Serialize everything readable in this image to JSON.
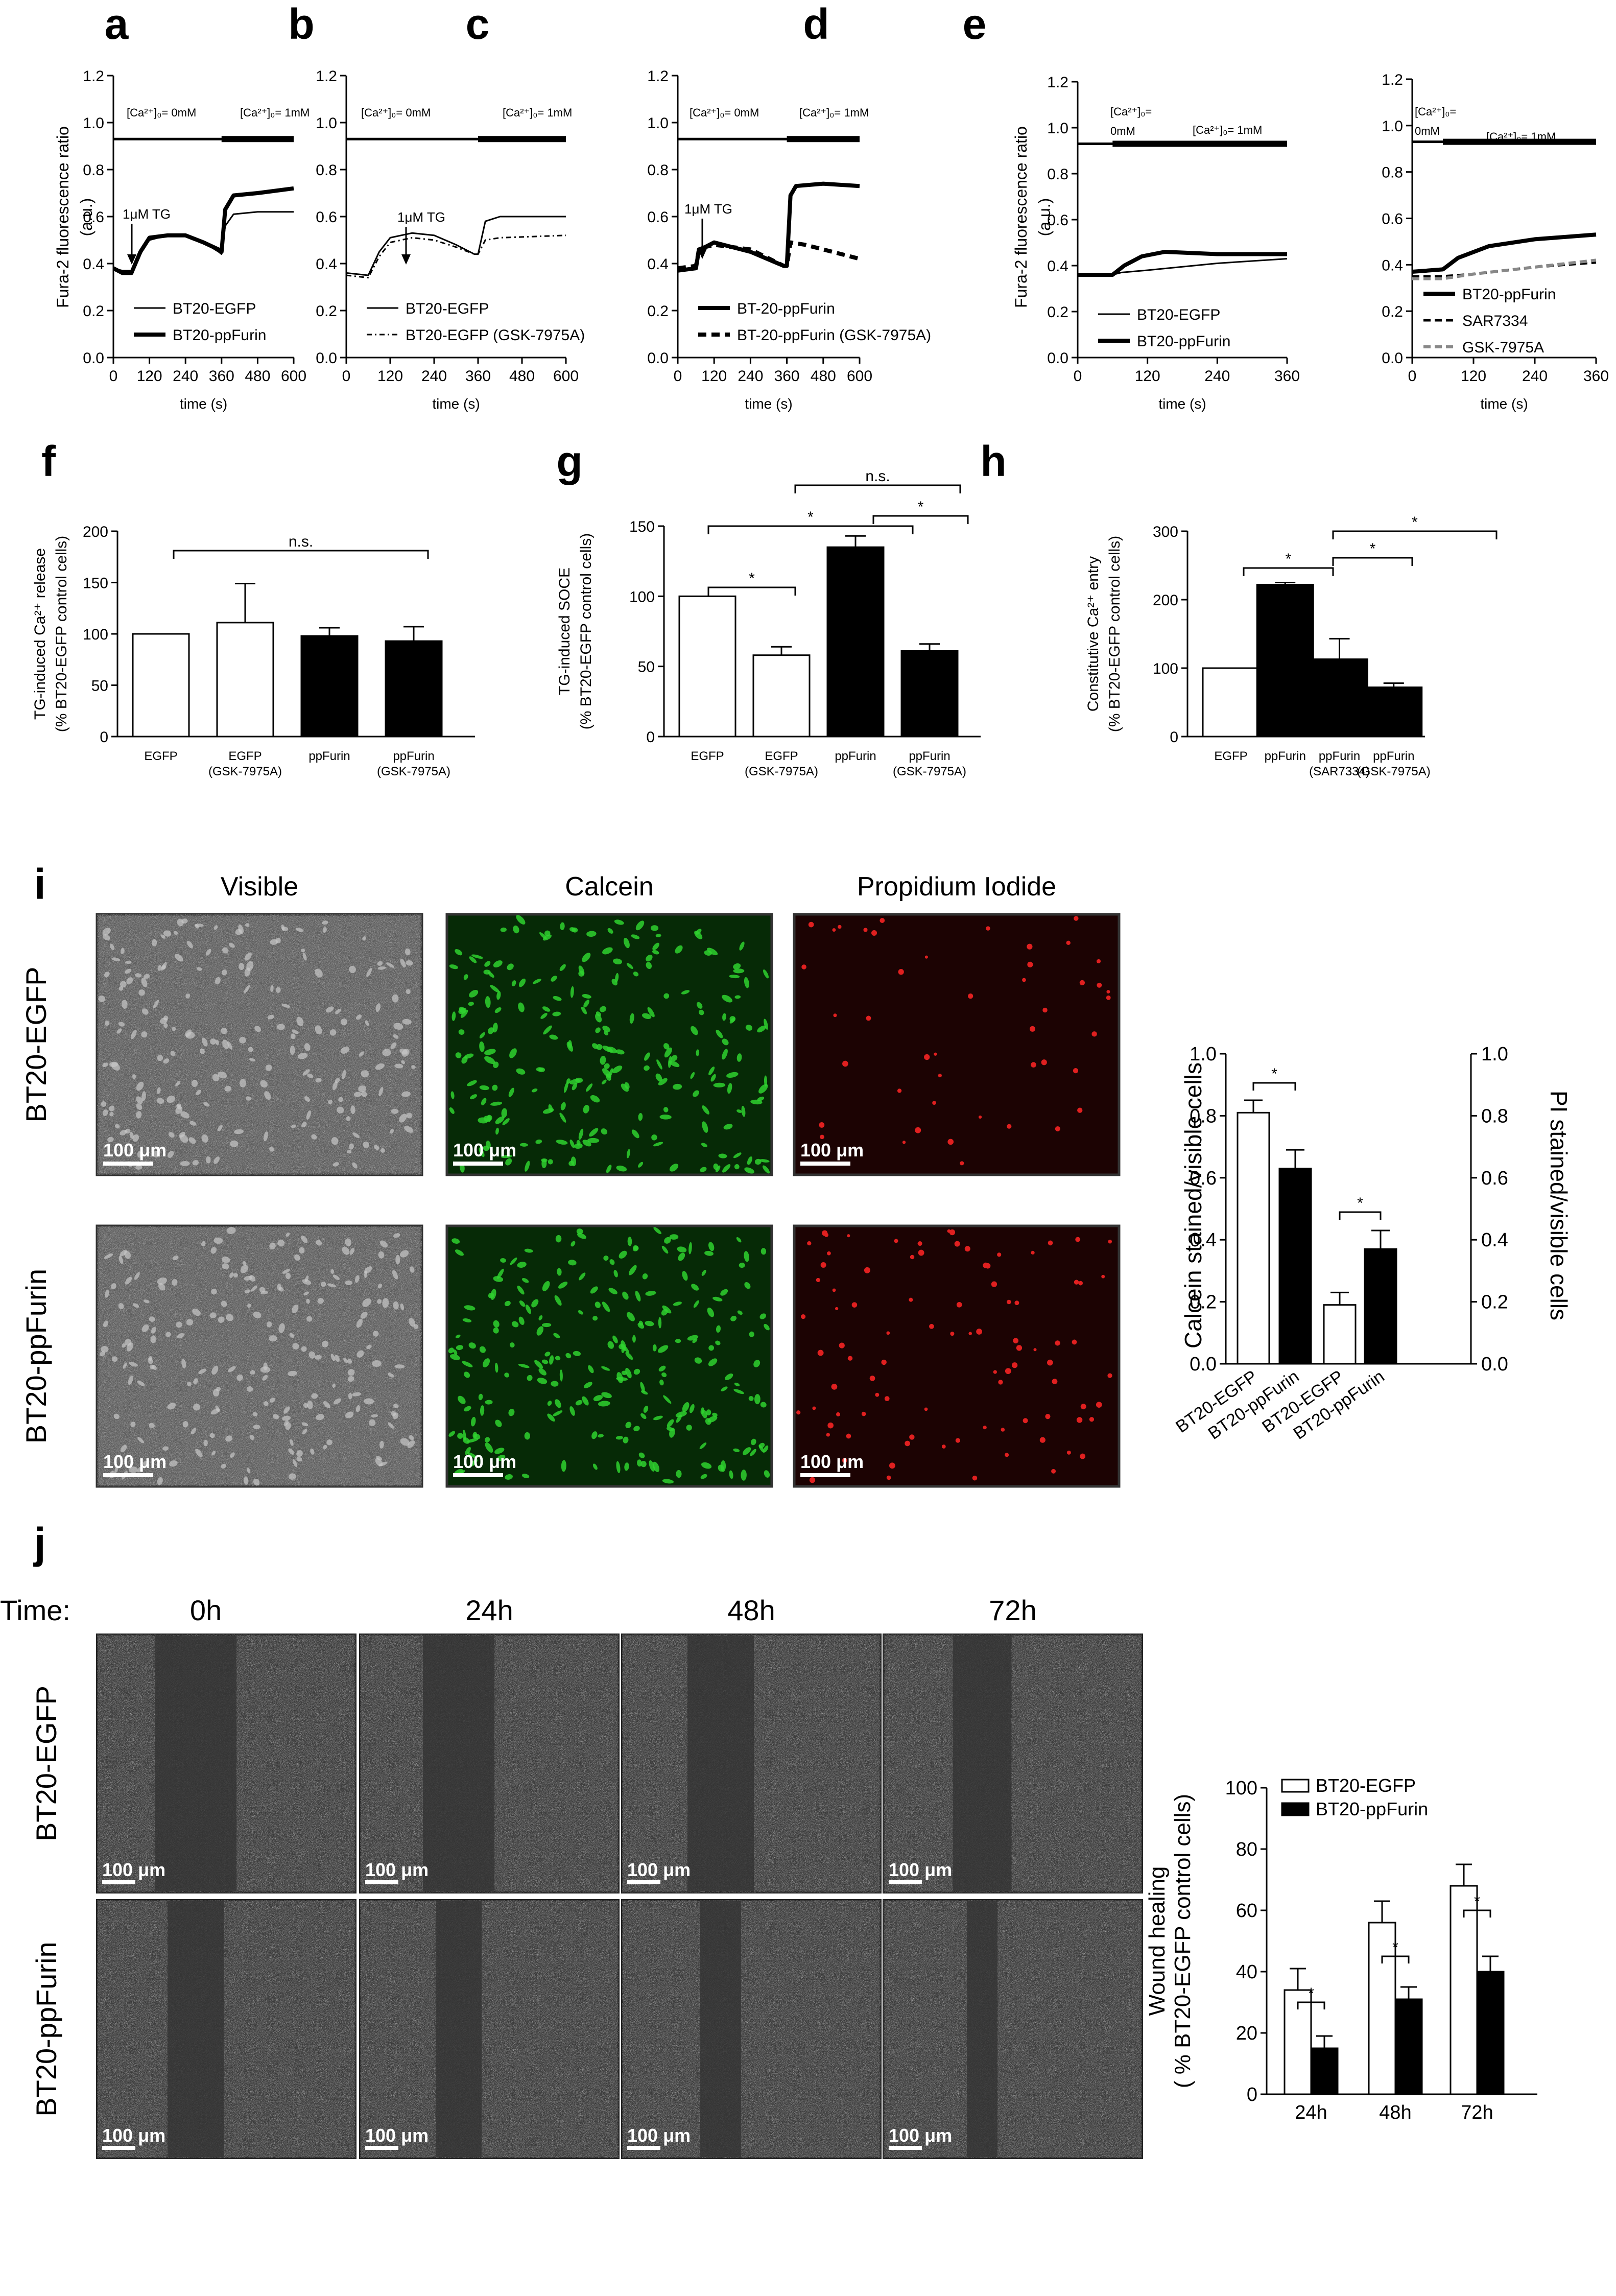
{
  "panels": {
    "a": "a",
    "b": "b",
    "c": "c",
    "d": "d",
    "e": "e",
    "f": "f",
    "g": "g",
    "h": "h",
    "i": "i",
    "j": "j"
  },
  "common": {
    "trace_ylabel_1": "Fura-2 fluorescence ratio",
    "trace_ylabel_2": "(a.u.)",
    "time_label": "time (s)",
    "tg_label": "1μM TG",
    "ca0_label": "[Ca²⁺]₀= 0mM",
    "ca1_label": "[Ca²⁺]₀= 1mM",
    "ca_stack_1": "[Ca²⁺]₀=",
    "ca_stack_2": "0mM",
    "ns": "n.s.",
    "star": "*",
    "scale_bar": "100 μm"
  },
  "colors": {
    "black": "#000000",
    "gray": "#888888",
    "white": "#ffffff",
    "calcein_green": "#2fd12f",
    "pi_red": "#e02020"
  },
  "chart_data": [
    {
      "panel": "a",
      "type": "line",
      "xlabel": "time (s)",
      "ylabel": "Fura-2 fluorescence ratio (a.u.)",
      "xlim": [
        0,
        600
      ],
      "ylim": [
        0,
        1.2
      ],
      "xticks": [
        0,
        120,
        240,
        360,
        480,
        600
      ],
      "yticks": [
        0.0,
        0.2,
        0.4,
        0.6,
        0.8,
        1.0,
        1.2
      ],
      "series": [
        {
          "name": "BT20-EGFP",
          "style": "thin",
          "points": [
            [
              0,
              0.38
            ],
            [
              30,
              0.37
            ],
            [
              60,
              0.37
            ],
            [
              90,
              0.44
            ],
            [
              120,
              0.5
            ],
            [
              180,
              0.52
            ],
            [
              240,
              0.52
            ],
            [
              300,
              0.49
            ],
            [
              350,
              0.45
            ],
            [
              360,
              0.44
            ],
            [
              372,
              0.56
            ],
            [
              400,
              0.61
            ],
            [
              480,
              0.62
            ],
            [
              600,
              0.62
            ]
          ]
        },
        {
          "name": "BT20-ppFurin",
          "style": "thick",
          "points": [
            [
              0,
              0.38
            ],
            [
              30,
              0.36
            ],
            [
              60,
              0.36
            ],
            [
              90,
              0.45
            ],
            [
              120,
              0.51
            ],
            [
              180,
              0.52
            ],
            [
              240,
              0.52
            ],
            [
              300,
              0.49
            ],
            [
              350,
              0.46
            ],
            [
              360,
              0.45
            ],
            [
              372,
              0.63
            ],
            [
              400,
              0.69
            ],
            [
              480,
              0.7
            ],
            [
              600,
              0.72
            ]
          ]
        }
      ]
    },
    {
      "panel": "b",
      "type": "line",
      "xlabel": "time (s)",
      "xlim": [
        0,
        600
      ],
      "ylim": [
        0,
        1.2
      ],
      "xticks": [
        0,
        120,
        240,
        360,
        480,
        600
      ],
      "yticks": [
        0.0,
        0.2,
        0.4,
        0.6,
        0.8,
        1.0,
        1.2
      ],
      "series": [
        {
          "name": "BT20-EGFP",
          "style": "thin",
          "points": [
            [
              0,
              0.36
            ],
            [
              60,
              0.35
            ],
            [
              90,
              0.45
            ],
            [
              120,
              0.51
            ],
            [
              180,
              0.53
            ],
            [
              240,
              0.52
            ],
            [
              300,
              0.48
            ],
            [
              350,
              0.44
            ],
            [
              360,
              0.44
            ],
            [
              380,
              0.58
            ],
            [
              420,
              0.6
            ],
            [
              600,
              0.6
            ]
          ]
        },
        {
          "name": "BT20-EGFP (GSK-7975A)",
          "style": "dashdot",
          "points": [
            [
              0,
              0.35
            ],
            [
              60,
              0.34
            ],
            [
              90,
              0.43
            ],
            [
              120,
              0.49
            ],
            [
              180,
              0.51
            ],
            [
              240,
              0.5
            ],
            [
              300,
              0.47
            ],
            [
              350,
              0.44
            ],
            [
              360,
              0.44
            ],
            [
              380,
              0.5
            ],
            [
              420,
              0.51
            ],
            [
              600,
              0.52
            ]
          ]
        }
      ]
    },
    {
      "panel": "c",
      "type": "line",
      "xlabel": "time (s)",
      "xlim": [
        0,
        600
      ],
      "ylim": [
        0,
        1.2
      ],
      "xticks": [
        0,
        120,
        240,
        360,
        480,
        600
      ],
      "yticks": [
        0.0,
        0.2,
        0.4,
        0.6,
        0.8,
        1.0,
        1.2
      ],
      "series": [
        {
          "name": "BT-20-ppFurin",
          "style": "thick",
          "points": [
            [
              0,
              0.37
            ],
            [
              60,
              0.38
            ],
            [
              70,
              0.46
            ],
            [
              90,
              0.47
            ],
            [
              120,
              0.49
            ],
            [
              240,
              0.45
            ],
            [
              350,
              0.39
            ],
            [
              360,
              0.39
            ],
            [
              372,
              0.69
            ],
            [
              390,
              0.73
            ],
            [
              480,
              0.74
            ],
            [
              600,
              0.73
            ]
          ]
        },
        {
          "name": "BT-20-ppFurin (GSK-7975A)",
          "style": "thickdash",
          "points": [
            [
              0,
              0.38
            ],
            [
              60,
              0.39
            ],
            [
              70,
              0.46
            ],
            [
              90,
              0.47
            ],
            [
              120,
              0.48
            ],
            [
              240,
              0.46
            ],
            [
              350,
              0.39
            ],
            [
              360,
              0.39
            ],
            [
              372,
              0.49
            ],
            [
              420,
              0.48
            ],
            [
              480,
              0.46
            ],
            [
              600,
              0.42
            ]
          ]
        }
      ]
    },
    {
      "panel": "d",
      "type": "line",
      "ylabel": "Fura-2 fluorescence ratio (a.u.)",
      "xlabel": "time (s)",
      "xlim": [
        0,
        360
      ],
      "ylim": [
        0,
        1.2
      ],
      "xticks": [
        0,
        120,
        240,
        360
      ],
      "yticks": [
        0.0,
        0.2,
        0.4,
        0.6,
        0.8,
        1.0,
        1.2
      ],
      "series": [
        {
          "name": "BT20-EGFP",
          "style": "thin",
          "points": [
            [
              0,
              0.36
            ],
            [
              60,
              0.36
            ],
            [
              75,
              0.37
            ],
            [
              120,
              0.38
            ],
            [
              240,
              0.41
            ],
            [
              360,
              0.43
            ]
          ]
        },
        {
          "name": "BT20-ppFurin",
          "style": "thick",
          "points": [
            [
              0,
              0.36
            ],
            [
              60,
              0.36
            ],
            [
              80,
              0.4
            ],
            [
              110,
              0.44
            ],
            [
              150,
              0.46
            ],
            [
              240,
              0.45
            ],
            [
              360,
              0.45
            ]
          ]
        }
      ]
    },
    {
      "panel": "e",
      "type": "line",
      "xlabel": "time (s)",
      "xlim": [
        0,
        360
      ],
      "ylim": [
        0,
        1.2
      ],
      "xticks": [
        0,
        120,
        240,
        360
      ],
      "yticks": [
        0.0,
        0.2,
        0.4,
        0.6,
        0.8,
        1.0,
        1.2
      ],
      "series": [
        {
          "name": "BT20-ppFurin",
          "style": "thick",
          "points": [
            [
              0,
              0.37
            ],
            [
              60,
              0.38
            ],
            [
              90,
              0.43
            ],
            [
              150,
              0.48
            ],
            [
              240,
              0.51
            ],
            [
              360,
              0.53
            ]
          ]
        },
        {
          "name": "SAR7334",
          "style": "dash",
          "points": [
            [
              0,
              0.35
            ],
            [
              60,
              0.35
            ],
            [
              120,
              0.36
            ],
            [
              240,
              0.39
            ],
            [
              360,
              0.41
            ]
          ]
        },
        {
          "name": "GSK-7975A",
          "style": "graydash",
          "points": [
            [
              0,
              0.34
            ],
            [
              60,
              0.34
            ],
            [
              120,
              0.36
            ],
            [
              240,
              0.39
            ],
            [
              360,
              0.42
            ]
          ]
        }
      ]
    },
    {
      "panel": "f",
      "type": "bar",
      "ylabel": "TG-induced Ca²⁺ release (% BT20-EGFP control cells)",
      "ylim": [
        0,
        200
      ],
      "yticks": [
        0,
        50,
        100,
        150,
        200
      ],
      "categories": [
        "EGFP",
        "EGFP (GSK-7975A)",
        "ppFurin",
        "ppFurin (GSK-7975A)"
      ],
      "values": [
        100,
        111,
        98,
        93
      ],
      "errors": [
        0,
        38,
        8,
        14
      ],
      "fills": [
        "white",
        "white",
        "black",
        "black"
      ]
    },
    {
      "panel": "g",
      "type": "bar",
      "ylabel": "TG-induced SOCE (% BT20-EGFP control cells)",
      "ylim": [
        0,
        150
      ],
      "yticks": [
        0,
        50,
        100,
        150
      ],
      "categories": [
        "EGFP",
        "EGFP (GSK-7975A)",
        "ppFurin",
        "ppFurin (GSK-7975A)"
      ],
      "values": [
        100,
        58,
        135,
        61
      ],
      "errors": [
        0,
        6,
        8,
        5
      ],
      "fills": [
        "white",
        "white",
        "black",
        "black"
      ]
    },
    {
      "panel": "h",
      "type": "bar",
      "ylabel": "Constitutive Ca²⁺ entry (% BT20-EGFP control cells)",
      "ylim": [
        0,
        300
      ],
      "yticks": [
        0,
        100,
        200,
        300
      ],
      "categories": [
        "EGFP",
        "ppFurin",
        "ppFurin (SAR7334)",
        "ppFurin (GSK-7975A)"
      ],
      "values": [
        100,
        222,
        113,
        72
      ],
      "errors": [
        0,
        3,
        30,
        6
      ],
      "fills": [
        "white",
        "black",
        "black",
        "black"
      ]
    },
    {
      "panel": "i",
      "type": "bar",
      "ylabel": "Calcein stained/visible cells",
      "ylabel2": "PI stained/visible cells",
      "ylim": [
        0,
        1.0
      ],
      "yticks": [
        0.0,
        0.2,
        0.4,
        0.6,
        0.8,
        1.0
      ],
      "categories": [
        "BT20-EGFP",
        "BT20-ppFurin",
        "BT20-EGFP",
        "BT20-ppFurin"
      ],
      "values": [
        0.81,
        0.63,
        0.19,
        0.37
      ],
      "errors": [
        0.04,
        0.06,
        0.04,
        0.06
      ],
      "fills": [
        "white",
        "black",
        "white",
        "black"
      ]
    },
    {
      "panel": "j",
      "type": "bar",
      "ylabel": "Wound healing ( % BT20-EGFP control cells)",
      "ylim": [
        0,
        100
      ],
      "yticks": [
        0,
        20,
        40,
        60,
        80,
        100
      ],
      "categories": [
        "24h",
        "48h",
        "72h"
      ],
      "series": [
        {
          "name": "BT20-EGFP",
          "fill": "white",
          "values": [
            34,
            56,
            68
          ],
          "errors": [
            7,
            7,
            7
          ]
        },
        {
          "name": "BT20-ppFurin",
          "fill": "black",
          "values": [
            15,
            31,
            40
          ],
          "errors": [
            4,
            4,
            5
          ]
        }
      ]
    }
  ],
  "panel_i": {
    "col_titles": [
      "Visible",
      "Calcein",
      "Propidium Iodide"
    ],
    "row_labels": [
      "BT20-EGFP",
      "BT20-ppFurin"
    ]
  },
  "panel_j": {
    "time_label": "Time:",
    "col_titles": [
      "0h",
      "24h",
      "48h",
      "72h"
    ],
    "row_labels": [
      "BT20-EGFP",
      "BT20-ppFurin"
    ]
  }
}
